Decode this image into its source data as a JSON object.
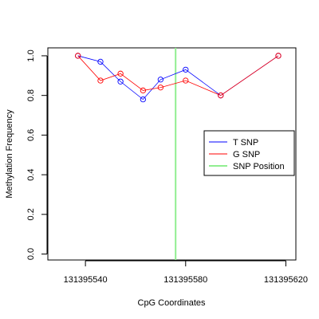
{
  "chart_data": {
    "type": "line",
    "title": "",
    "xlabel": "CpG Coordinates",
    "ylabel": "Methylation Frequency",
    "xlim": [
      131395525,
      131395624
    ],
    "ylim": [
      -0.03,
      1.04
    ],
    "x_ticks": [
      131395540,
      131395580,
      131395620
    ],
    "x_tick_labels": [
      "131395540",
      "131395580",
      "131395620"
    ],
    "y_ticks": [
      0.0,
      0.2,
      0.4,
      0.6,
      0.8,
      1.0
    ],
    "y_tick_labels": [
      "0.0",
      "0.2",
      "0.4",
      "0.6",
      "0.8",
      "1.0"
    ],
    "grid": false,
    "legend_position": "right",
    "series": [
      {
        "name": "T SNP",
        "color": "#0000ff",
        "x": [
          131395537,
          131395546,
          131395554,
          131395563,
          131395570,
          131395580,
          131395594,
          131395617
        ],
        "y": [
          1.0,
          0.97,
          0.87,
          0.78,
          0.88,
          0.93,
          0.8,
          1.0
        ]
      },
      {
        "name": "G SNP",
        "color": "#ff0000",
        "x": [
          131395537,
          131395546,
          131395554,
          131395563,
          131395570,
          131395580,
          131395594,
          131395617
        ],
        "y": [
          1.0,
          0.875,
          0.91,
          0.825,
          0.84,
          0.875,
          0.8,
          1.0
        ]
      }
    ],
    "vlines": [
      {
        "name": "SNP Position",
        "color": "#90ee90",
        "x": 131395576
      }
    ],
    "legend": [
      {
        "label": "T SNP",
        "color": "#0000ff"
      },
      {
        "label": "G SNP",
        "color": "#ff0000"
      },
      {
        "label": "SNP Position",
        "color": "#90ee90"
      }
    ]
  }
}
